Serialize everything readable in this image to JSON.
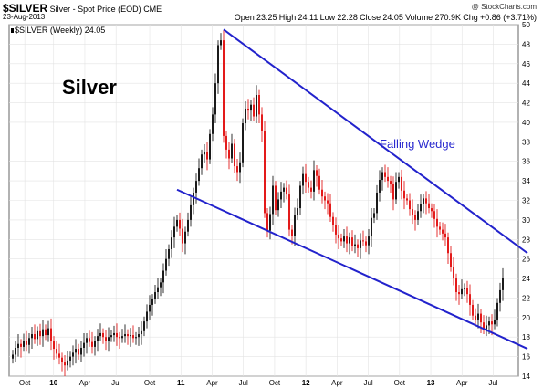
{
  "header": {
    "ticker": "$SILVER",
    "description": "Silver - Spot Price (EOD)",
    "exchange": "CME",
    "copyright": "@ StockCharts.com",
    "date": "23-Aug-2013",
    "open_label": "Open",
    "open": "23.25",
    "high_label": "High",
    "high": "24.11",
    "low_label": "Low",
    "low": "22.28",
    "close_label": "Close",
    "close": "24.05",
    "volume_label": "Volume",
    "volume": "270.9K",
    "chg_label": "Chg",
    "chg": "+0.86 (+3.71%)"
  },
  "chart_data": {
    "type": "candlestick",
    "title": "Silver",
    "legend": "$SILVER (Weekly) 24.05",
    "annotation": "Falling Wedge",
    "y_ticks": [
      14,
      16,
      18,
      20,
      22,
      24,
      26,
      28,
      30,
      32,
      34,
      36,
      38,
      40,
      42,
      44,
      46,
      48,
      50
    ],
    "ylim": [
      14,
      50
    ],
    "x_ticks": [
      "Oct",
      "10",
      "Apr",
      "Jul",
      "Oct",
      "11",
      "Apr",
      "Jul",
      "Oct",
      "12",
      "Apr",
      "Jul",
      "Oct",
      "13",
      "Apr",
      "Jul"
    ],
    "grid": true,
    "up_color": "#000000",
    "down_color": "#e00000",
    "trendline_color": "#2222cc",
    "closes_weekly": [
      16.2,
      16.9,
      17.3,
      17.0,
      17.6,
      17.2,
      17.9,
      18.3,
      17.8,
      18.6,
      18.1,
      18.8,
      18.2,
      18.9,
      17.6,
      16.8,
      16.3,
      15.9,
      15.4,
      15.1,
      15.6,
      16.0,
      16.4,
      16.8,
      16.2,
      16.9,
      17.4,
      17.9,
      17.5,
      17.0,
      17.6,
      18.1,
      18.4,
      18.0,
      17.6,
      18.0,
      18.2,
      18.4,
      18.0,
      17.9,
      18.1,
      18.3,
      18.1,
      18.2,
      17.9,
      18.0,
      18.3,
      18.6,
      19.6,
      20.6,
      21.3,
      21.9,
      22.6,
      23.1,
      23.6,
      24.8,
      26.0,
      27.0,
      28.2,
      29.3,
      30.0,
      29.1,
      27.6,
      28.8,
      30.0,
      31.5,
      32.8,
      34.0,
      35.3,
      36.7,
      37.0,
      36.2,
      38.8,
      40.8,
      44.0,
      47.9,
      48.4,
      38.6,
      37.2,
      36.3,
      37.8,
      35.5,
      34.9,
      35.9,
      39.9,
      41.4,
      41.2,
      41.8,
      40.6,
      42.8,
      40.8,
      39.1,
      30.7,
      28.9,
      30.6,
      33.5,
      31.0,
      32.1,
      32.9,
      33.3,
      32.6,
      29.0,
      28.4,
      30.5,
      31.2,
      33.5,
      34.7,
      33.9,
      33.3,
      32.9,
      35.1,
      34.5,
      33.1,
      32.4,
      32.0,
      31.7,
      30.3,
      29.5,
      28.5,
      28.1,
      27.8,
      28.3,
      27.6,
      28.2,
      27.3,
      27.5,
      27.1,
      27.9,
      27.8,
      27.4,
      28.3,
      30.2,
      30.7,
      32.8,
      34.1,
      34.9,
      34.4,
      34.0,
      33.7,
      32.1,
      33.9,
      34.4,
      33.0,
      32.2,
      32.0,
      31.1,
      30.5,
      30.0,
      30.9,
      31.6,
      32.2,
      31.7,
      31.2,
      30.9,
      30.1,
      29.3,
      29.0,
      28.6,
      28.2,
      26.6,
      25.2,
      24.0,
      22.6,
      22.4,
      22.9,
      23.0,
      22.4,
      21.3,
      20.2,
      19.8,
      20.4,
      19.5,
      18.8,
      19.2,
      19.6,
      19.3,
      19.8,
      21.5,
      22.8,
      24.05
    ],
    "trendlines": [
      {
        "name": "upper",
        "x1_week": 77,
        "y1": 49.5,
        "x2_week": 188,
        "y2": 26.6
      },
      {
        "name": "lower",
        "x1_week": 60,
        "y1": 33.1,
        "x2_week": 188,
        "y2": 16.8
      }
    ]
  }
}
